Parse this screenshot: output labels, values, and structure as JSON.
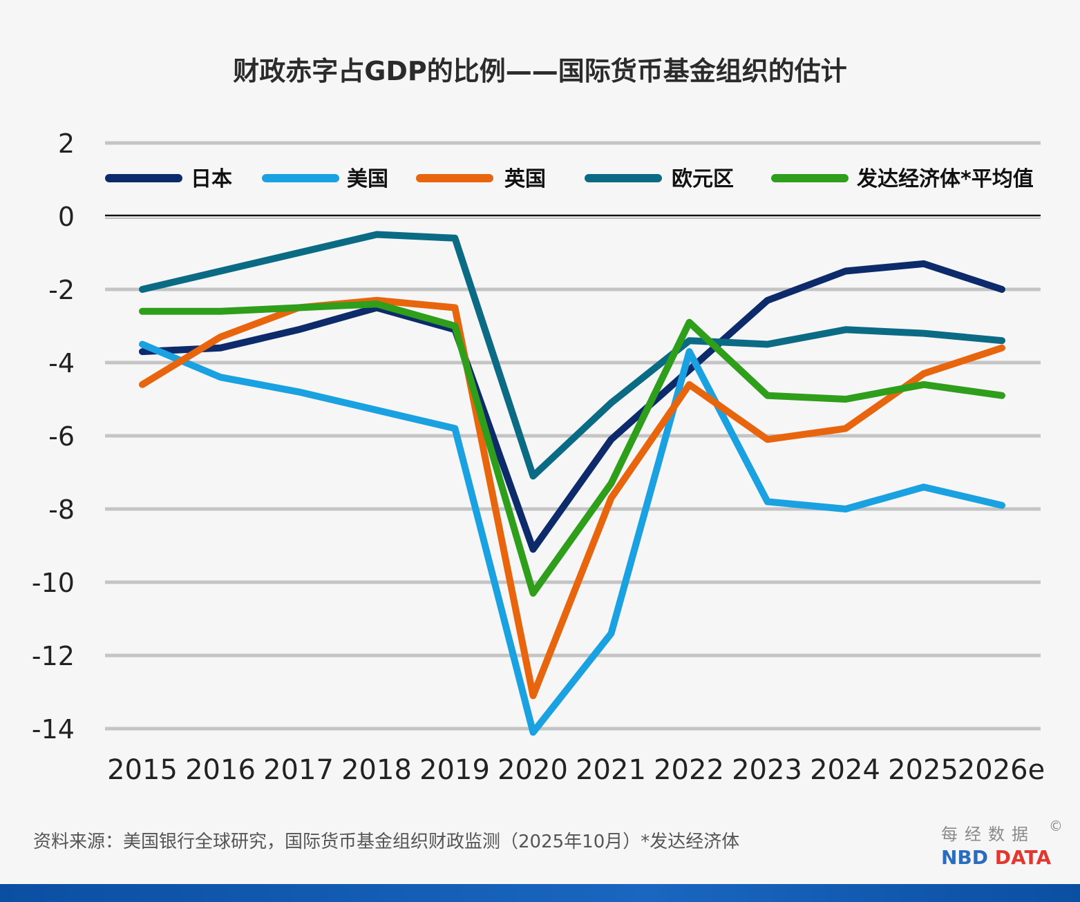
{
  "chart_data": {
    "type": "line",
    "title": "财政赤字占GDP的比例——国际货币基金组织的估计",
    "x": [
      "2015",
      "2016",
      "2017",
      "2018",
      "2019",
      "2020",
      "2021",
      "2022",
      "2023",
      "2024",
      "2025",
      "2026e"
    ],
    "ylim": [
      -14,
      2
    ],
    "yticks": [
      2,
      0,
      -2,
      -4,
      -6,
      -8,
      -10,
      -12,
      -14
    ],
    "grid": true,
    "legend_position": "top",
    "series": [
      {
        "name": "日本",
        "color": "#0d2a6b",
        "values": [
          -3.7,
          -3.6,
          -3.1,
          -2.5,
          -3.1,
          -9.1,
          -6.1,
          -4.2,
          -2.3,
          -1.5,
          -1.3,
          -2.0
        ]
      },
      {
        "name": "美国",
        "color": "#1aa1e1",
        "values": [
          -3.5,
          -4.4,
          -4.8,
          -5.3,
          -5.8,
          -14.1,
          -11.4,
          -3.7,
          -7.8,
          -8.0,
          -7.4,
          -7.9
        ]
      },
      {
        "name": "英国",
        "color": "#e8650e",
        "values": [
          -4.6,
          -3.3,
          -2.5,
          -2.3,
          -2.5,
          -13.1,
          -7.7,
          -4.6,
          -6.1,
          -5.8,
          -4.3,
          -3.6
        ]
      },
      {
        "name": "欧元区",
        "color": "#0b6b84",
        "values": [
          -2.0,
          -1.5,
          -1.0,
          -0.5,
          -0.6,
          -7.1,
          -5.1,
          -3.4,
          -3.5,
          -3.1,
          -3.2,
          -3.4
        ]
      },
      {
        "name": "发达经济体*平均值",
        "color": "#2e9e1b",
        "values": [
          -2.6,
          -2.6,
          -2.5,
          -2.4,
          -3.0,
          -10.3,
          -7.3,
          -2.9,
          -4.9,
          -5.0,
          -4.6,
          -4.9
        ]
      }
    ]
  },
  "footer": {
    "source": "资料来源：美国银行全球研究，国际货币基金组织财政监测（2025年10月）*发达经济体",
    "logo_cn": "每经数据",
    "logo_copyright": "©",
    "logo_en_nbd": "NBD",
    "logo_en_data": "DATA"
  }
}
